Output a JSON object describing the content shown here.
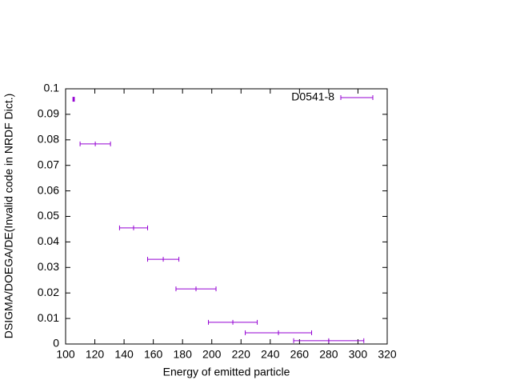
{
  "chart_data": {
    "type": "errorbar",
    "xlabel": "Energy of emitted particle",
    "ylabel": "DSIGMA/DOEGA/DE(Invalid code in NRDF Dict.)",
    "series": [
      {
        "name": "D0541-8",
        "color": "#9400d3",
        "x": [
          105.5,
          120.3,
          146.5,
          166.8,
          189.2,
          214.4,
          245.6,
          280
        ],
        "xerr": [
          0.5,
          10.4,
          9.6,
          10.7,
          13.7,
          16.7,
          22.7,
          24
        ],
        "values": [
          0.0959,
          0.0784,
          0.0455,
          0.0332,
          0.0216,
          0.0085,
          0.0044,
          0.0013
        ]
      }
    ],
    "xlim": [
      100,
      320
    ],
    "xticks": [
      100,
      120,
      140,
      160,
      180,
      200,
      220,
      240,
      260,
      280,
      300,
      320
    ],
    "ylim": [
      0,
      0.1
    ],
    "yticks": [
      0,
      0.01,
      0.02,
      0.03,
      0.04,
      0.05,
      0.06,
      0.07,
      0.08,
      0.09,
      0.1
    ],
    "legend": "top-right"
  }
}
